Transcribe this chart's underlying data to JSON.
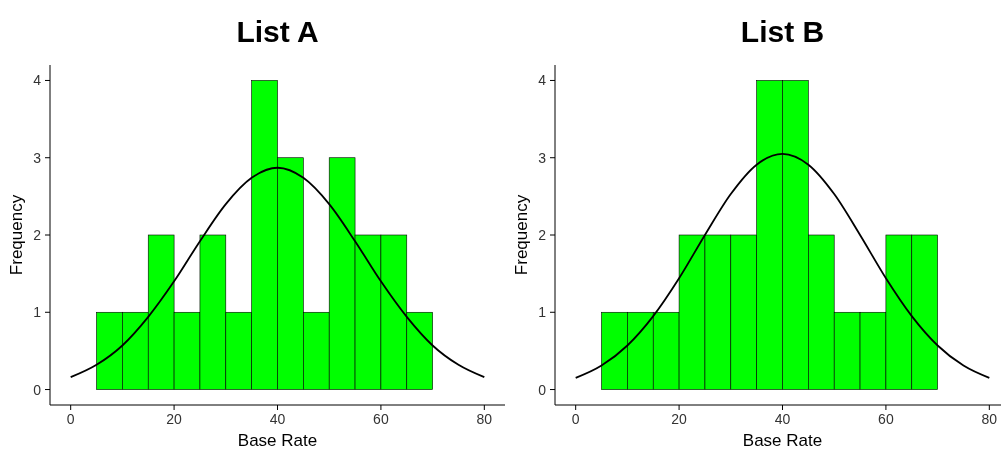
{
  "chart_data": [
    {
      "type": "histogram",
      "title": "List A",
      "xlabel": "Base Rate",
      "ylabel": "Frequency",
      "bins": [
        5,
        10,
        15,
        20,
        25,
        30,
        35,
        40,
        45,
        50,
        55,
        60,
        65,
        70
      ],
      "values": [
        1,
        1,
        2,
        1,
        2,
        1,
        4,
        3,
        1,
        3,
        2,
        2,
        1
      ],
      "color": "#00ff00",
      "series": [
        {
          "type": "line",
          "color": "#000000",
          "x": [
            0,
            5,
            10,
            15,
            20,
            25,
            30,
            35,
            40,
            45,
            50,
            55,
            60,
            65,
            70,
            75,
            80
          ],
          "values": [
            0.16,
            0.32,
            0.57,
            0.94,
            1.4,
            1.92,
            2.4,
            2.74,
            2.87,
            2.74,
            2.4,
            1.92,
            1.4,
            0.94,
            0.57,
            0.32,
            0.16
          ]
        }
      ],
      "xlim": [
        -4,
        84
      ],
      "xticks": [
        0,
        20,
        40,
        60,
        80
      ],
      "ylim": [
        -0.2,
        4.2
      ],
      "yticks": [
        0,
        1,
        2,
        3,
        4
      ],
      "grid": false
    },
    {
      "type": "histogram",
      "title": "List B",
      "xlabel": "Base Rate",
      "ylabel": "Frequency",
      "bins": [
        5,
        10,
        15,
        20,
        25,
        30,
        35,
        40,
        45,
        50,
        55,
        60,
        65,
        70
      ],
      "values": [
        1,
        1,
        1,
        2,
        2,
        2,
        4,
        4,
        2,
        1,
        1,
        2,
        2
      ],
      "color": "#00ff00",
      "series": [
        {
          "type": "line",
          "color": "#000000",
          "x": [
            0,
            5,
            10,
            15,
            20,
            25,
            30,
            35,
            40,
            45,
            50,
            55,
            60,
            65,
            70,
            75,
            80
          ],
          "values": [
            0.15,
            0.31,
            0.57,
            0.95,
            1.44,
            2,
            2.53,
            2.91,
            3.05,
            2.91,
            2.53,
            2,
            1.44,
            0.95,
            0.57,
            0.31,
            0.15
          ]
        }
      ],
      "xlim": [
        -4,
        84
      ],
      "xticks": [
        0,
        20,
        40,
        60,
        80
      ],
      "ylim": [
        -0.2,
        4.2
      ],
      "yticks": [
        0,
        1,
        2,
        3,
        4
      ],
      "grid": false
    }
  ]
}
